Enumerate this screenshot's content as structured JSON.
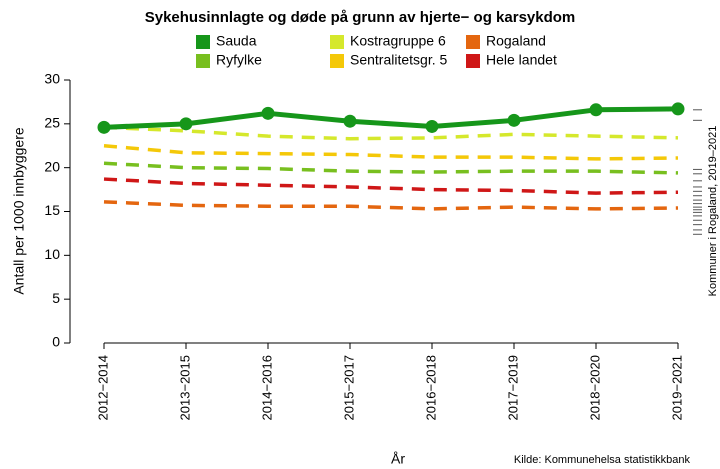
{
  "chart_data": {
    "type": "line",
    "title": "Sykehusinnlagte og døde på grunn av hjerte− og karsykdom",
    "x_label": "År",
    "y_label": "Antall per 1000 innbyggere",
    "source": "Kilde: Kommunehelsa statistikkbank",
    "categories": [
      "2012−2014",
      "2013−2015",
      "2014−2016",
      "2015−2017",
      "2016−2018",
      "2017−2019",
      "2018−2020",
      "2019−2021"
    ],
    "ylim": [
      0,
      30
    ],
    "yticks": [
      0,
      5,
      10,
      15,
      20,
      25,
      30
    ],
    "series": [
      {
        "name": "Sauda",
        "color": "#16961a",
        "style": "solid",
        "values": [
          24.6,
          25.0,
          26.2,
          25.3,
          24.7,
          25.4,
          26.6,
          26.7
        ]
      },
      {
        "name": "Ryfylke",
        "color": "#78bf1f",
        "style": "dashed",
        "values": [
          20.5,
          20.0,
          19.9,
          19.6,
          19.5,
          19.6,
          19.6,
          19.4
        ]
      },
      {
        "name": "Kostragruppe 6",
        "color": "#d5e82c",
        "style": "dashed",
        "values": [
          24.6,
          24.2,
          23.6,
          23.3,
          23.4,
          23.8,
          23.6,
          23.4
        ]
      },
      {
        "name": "Sentralitetsgr. 5",
        "color": "#f4c808",
        "style": "dashed",
        "values": [
          22.5,
          21.7,
          21.6,
          21.5,
          21.2,
          21.2,
          21.0,
          21.1
        ]
      },
      {
        "name": "Rogaland",
        "color": "#e4660f",
        "style": "dashed",
        "values": [
          16.1,
          15.7,
          15.6,
          15.6,
          15.3,
          15.5,
          15.3,
          15.4
        ]
      },
      {
        "name": "Hele landet",
        "color": "#cf1717",
        "style": "dashed",
        "values": [
          18.7,
          18.2,
          18.0,
          17.8,
          17.5,
          17.4,
          17.1,
          17.2
        ]
      }
    ],
    "rug": {
      "label": "Kommuner i Rogaland, 2019–2021",
      "color": "#555555",
      "values": [
        26.6,
        25.4,
        19.8,
        19.3,
        18.5,
        17.8,
        17.3,
        16.8,
        16.3,
        15.9,
        15.5,
        15.2,
        14.9,
        14.5,
        14.0,
        13.5,
        12.9,
        12.4
      ]
    }
  }
}
